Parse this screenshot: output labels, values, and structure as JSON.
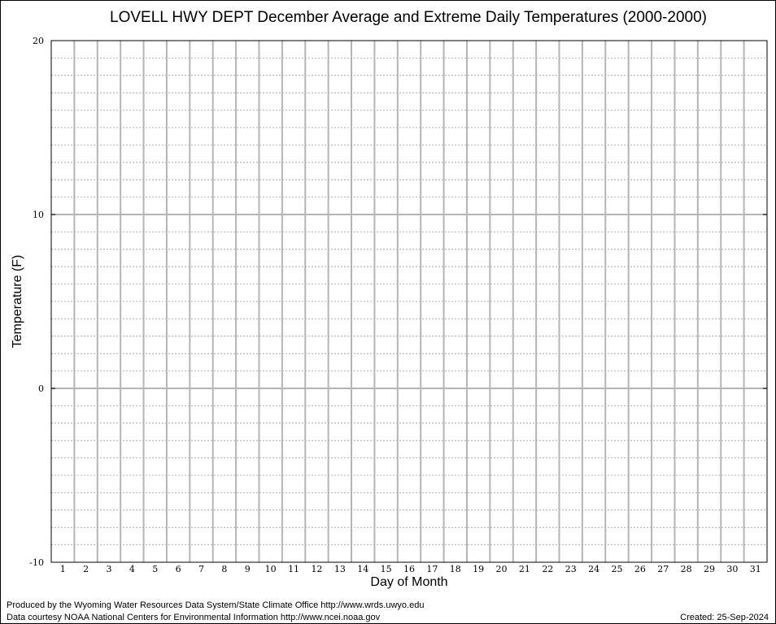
{
  "chart_data": {
    "type": "line",
    "title": "LOVELL HWY DEPT December Average and Extreme Daily Temperatures (2000-2000)",
    "xlabel": "Day of Month",
    "ylabel": "Temperature (F)",
    "x": [
      1,
      2,
      3,
      4,
      5,
      6,
      7,
      8,
      9,
      10,
      11,
      12,
      13,
      14,
      15,
      16,
      17,
      18,
      19,
      20,
      21,
      22,
      23,
      24,
      25,
      26,
      27,
      28,
      29,
      30,
      31
    ],
    "x_ticks": [
      "1",
      "2",
      "3",
      "4",
      "5",
      "6",
      "7",
      "8",
      "9",
      "10",
      "11",
      "12",
      "13",
      "14",
      "15",
      "16",
      "17",
      "18",
      "19",
      "20",
      "21",
      "22",
      "23",
      "24",
      "25",
      "26",
      "27",
      "28",
      "29",
      "30",
      "31"
    ],
    "y_ticks": [
      "20",
      "10",
      "0",
      "-10"
    ],
    "ylim": [
      -10,
      20
    ],
    "y_minor_step": 1,
    "grid": true,
    "series": []
  },
  "footer": {
    "produced_by": "Produced by the Wyoming Water Resources Data System/State Climate Office http://www.wrds.uwyo.edu",
    "courtesy": "Data courtesy NOAA National Centers for Environmental Information http://www.ncei.noaa.gov",
    "created": "Created: 25-Sep-2024"
  }
}
